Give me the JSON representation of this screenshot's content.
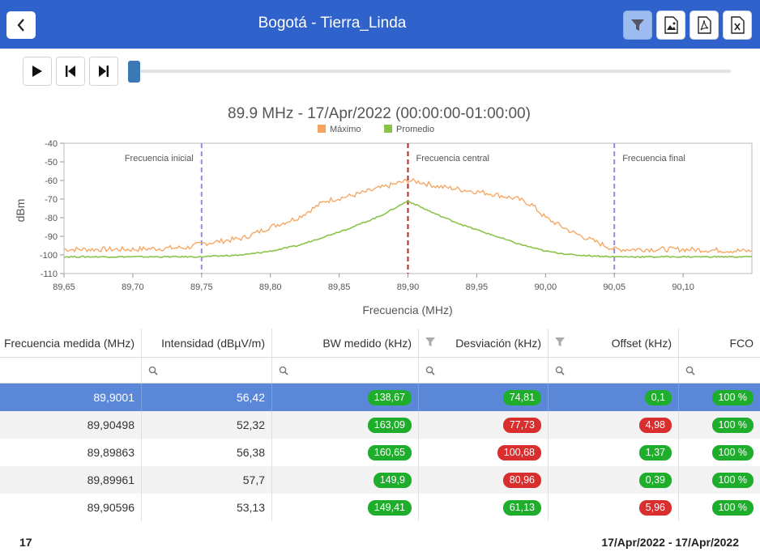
{
  "header": {
    "title": "Bogotá - Tierra_Linda"
  },
  "toolbar": {
    "icons": [
      "filter-icon",
      "image-export-icon",
      "pdf-export-icon",
      "excel-export-icon"
    ]
  },
  "playback": {
    "position": 0
  },
  "chart_data": {
    "type": "line",
    "title": "89.9 MHz - 17/Apr/2022 (00:00:00-01:00:00)",
    "xlabel": "Frecuencia (MHz)",
    "ylabel": "dBm",
    "xlim": [
      89.65,
      90.15
    ],
    "ylim": [
      -110,
      -40
    ],
    "x_ticks": [
      "89,65",
      "89,70",
      "89,75",
      "89,80",
      "89,85",
      "89,90",
      "89,95",
      "90,00",
      "90,05",
      "90,10"
    ],
    "y_ticks": [
      "-40",
      "-50",
      "-60",
      "-70",
      "-80",
      "-90",
      "-100",
      "-110"
    ],
    "legend": [
      {
        "name": "Máximo",
        "color": "#f6a35c"
      },
      {
        "name": "Promedio",
        "color": "#8bc34a"
      }
    ],
    "markers": [
      {
        "x": 89.75,
        "label": "Frecuencia inicial",
        "color": "#8e8ee6"
      },
      {
        "x": 89.9,
        "label": "Frecuencia central",
        "color": "#b32424"
      },
      {
        "x": 90.05,
        "label": "Frecuencia final",
        "color": "#8e8ee6"
      }
    ],
    "series": [
      {
        "name": "Máximo",
        "color": "#f6a35c",
        "x": [
          89.65,
          89.7,
          89.74,
          89.75,
          89.78,
          89.8,
          89.82,
          89.84,
          89.86,
          89.88,
          89.89,
          89.9,
          89.91,
          89.92,
          89.94,
          89.96,
          89.98,
          89.99,
          90.0,
          90.02,
          90.04,
          90.05,
          90.1,
          90.15
        ],
        "y": [
          -97,
          -97,
          -96,
          -94,
          -91,
          -85,
          -80,
          -71,
          -68,
          -64,
          -62,
          -60,
          -61,
          -63,
          -65,
          -67,
          -70,
          -73,
          -80,
          -88,
          -94,
          -97,
          -97,
          -98
        ]
      },
      {
        "name": "Promedio",
        "color": "#8bc34a",
        "x": [
          89.65,
          89.7,
          89.75,
          89.78,
          89.8,
          89.82,
          89.84,
          89.86,
          89.88,
          89.9,
          89.92,
          89.94,
          89.96,
          89.98,
          90.0,
          90.02,
          90.05,
          90.1,
          90.15
        ],
        "y": [
          -101,
          -101,
          -101,
          -100,
          -98,
          -95,
          -90,
          -85,
          -79,
          -71,
          -78,
          -84,
          -89,
          -94,
          -98,
          -100,
          -101,
          -101,
          -101
        ]
      }
    ]
  },
  "table": {
    "columns": [
      {
        "label": "Frecuencia medida (MHz)"
      },
      {
        "label": "Intensidad (dBµV/m)"
      },
      {
        "label": "BW medido (kHz)"
      },
      {
        "label": "Desviación (kHz)"
      },
      {
        "label": "Offset (kHz)"
      },
      {
        "label": "FCO"
      }
    ],
    "rows": [
      {
        "freq": "89,9001",
        "int": "56,42",
        "bw": "138,67",
        "bw_c": "green",
        "dev": "74,81",
        "dev_c": "green",
        "off": "0,1",
        "off_c": "green",
        "fco": "100 %",
        "fco_c": "green"
      },
      {
        "freq": "89,90498",
        "int": "52,32",
        "bw": "163,09",
        "bw_c": "green",
        "dev": "77,73",
        "dev_c": "red",
        "off": "4,98",
        "off_c": "red",
        "fco": "100 %",
        "fco_c": "green"
      },
      {
        "freq": "89,89863",
        "int": "56,38",
        "bw": "160,65",
        "bw_c": "green",
        "dev": "100,68",
        "dev_c": "red",
        "off": "1,37",
        "off_c": "green",
        "fco": "100 %",
        "fco_c": "green"
      },
      {
        "freq": "89,89961",
        "int": "57,7",
        "bw": "149,9",
        "bw_c": "green",
        "dev": "80,96",
        "dev_c": "red",
        "off": "0,39",
        "off_c": "green",
        "fco": "100 %",
        "fco_c": "green"
      },
      {
        "freq": "89,90596",
        "int": "53,13",
        "bw": "149,41",
        "bw_c": "green",
        "dev": "61,13",
        "dev_c": "green",
        "off": "5,96",
        "off_c": "red",
        "fco": "100 %",
        "fco_c": "green"
      }
    ]
  },
  "footer": {
    "count": "17",
    "date_range": "17/Apr/2022 - 17/Apr/2022"
  }
}
